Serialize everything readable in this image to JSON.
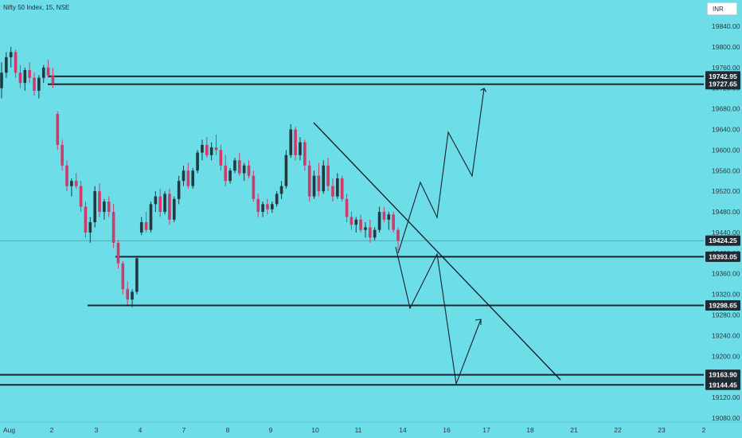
{
  "header": {
    "symbol": "Nifty 50 Index, 15, NSE",
    "currency": "INR"
  },
  "colors": {
    "background": "#6ddde8",
    "up_candle": "#1f3a40",
    "down_candle": "#cf3a6a",
    "level_line": "#1b2730",
    "price_line": "#3a8f98",
    "label_bg": "#1f2a33"
  },
  "chart_data": {
    "type": "candlestick",
    "title": "Nifty 50 Index, 15, NSE",
    "ylim": [
      19080,
      19870
    ],
    "y_ticks": [
      19840,
      19800,
      19760,
      19720,
      19680,
      19640,
      19600,
      19560,
      19520,
      19480,
      19440,
      19400,
      19360,
      19320,
      19280,
      19240,
      19200,
      19160,
      19120,
      19080
    ],
    "x_ticks": [
      "Aug",
      "2",
      "3",
      "4",
      "7",
      "8",
      "9",
      "10",
      "11",
      "14",
      "16",
      "17",
      "18",
      "21",
      "22",
      "23",
      "2"
    ],
    "current_price": 19424.25,
    "levels": [
      19742.95,
      19727.65,
      19393.05,
      19298.65,
      19163.9,
      19144.45
    ],
    "level_labels": [
      "19742.95",
      "19727.65",
      "19393.05",
      "19298.65",
      "19163.90",
      "19144.45"
    ],
    "current_price_label": "19424.25",
    "candles": [
      {
        "o": 19720,
        "h": 19770,
        "l": 19700,
        "c": 19750
      },
      {
        "o": 19750,
        "h": 19790,
        "l": 19740,
        "c": 19780
      },
      {
        "o": 19780,
        "h": 19800,
        "l": 19760,
        "c": 19790
      },
      {
        "o": 19790,
        "h": 19795,
        "l": 19740,
        "c": 19750
      },
      {
        "o": 19750,
        "h": 19765,
        "l": 19720,
        "c": 19730
      },
      {
        "o": 19730,
        "h": 19760,
        "l": 19715,
        "c": 19755
      },
      {
        "o": 19755,
        "h": 19770,
        "l": 19730,
        "c": 19740
      },
      {
        "o": 19740,
        "h": 19750,
        "l": 19705,
        "c": 19715
      },
      {
        "o": 19715,
        "h": 19745,
        "l": 19700,
        "c": 19740
      },
      {
        "o": 19740,
        "h": 19765,
        "l": 19730,
        "c": 19760
      },
      {
        "o": 19760,
        "h": 19775,
        "l": 19740,
        "c": 19745
      },
      {
        "o": 19745,
        "h": 19760,
        "l": 19720,
        "c": 19730
      },
      {
        "o": 19670,
        "h": 19675,
        "l": 19600,
        "c": 19610
      },
      {
        "o": 19610,
        "h": 19620,
        "l": 19560,
        "c": 19570
      },
      {
        "o": 19570,
        "h": 19580,
        "l": 19520,
        "c": 19530
      },
      {
        "o": 19530,
        "h": 19545,
        "l": 19510,
        "c": 19540
      },
      {
        "o": 19540,
        "h": 19555,
        "l": 19525,
        "c": 19530
      },
      {
        "o": 19530,
        "h": 19540,
        "l": 19480,
        "c": 19490
      },
      {
        "o": 19490,
        "h": 19500,
        "l": 19430,
        "c": 19440
      },
      {
        "o": 19440,
        "h": 19470,
        "l": 19420,
        "c": 19460
      },
      {
        "o": 19460,
        "h": 19530,
        "l": 19450,
        "c": 19520
      },
      {
        "o": 19520,
        "h": 19535,
        "l": 19470,
        "c": 19480
      },
      {
        "o": 19480,
        "h": 19505,
        "l": 19465,
        "c": 19500
      },
      {
        "o": 19500,
        "h": 19510,
        "l": 19470,
        "c": 19480
      },
      {
        "o": 19480,
        "h": 19495,
        "l": 19410,
        "c": 19420
      },
      {
        "o": 19420,
        "h": 19425,
        "l": 19370,
        "c": 19380
      },
      {
        "o": 19380,
        "h": 19385,
        "l": 19320,
        "c": 19330
      },
      {
        "o": 19330,
        "h": 19345,
        "l": 19300,
        "c": 19310
      },
      {
        "o": 19310,
        "h": 19330,
        "l": 19295,
        "c": 19325
      },
      {
        "o": 19325,
        "h": 19395,
        "l": 19320,
        "c": 19390
      },
      {
        "o": 19440,
        "h": 19470,
        "l": 19435,
        "c": 19460
      },
      {
        "o": 19460,
        "h": 19480,
        "l": 19440,
        "c": 19445
      },
      {
        "o": 19445,
        "h": 19500,
        "l": 19440,
        "c": 19495
      },
      {
        "o": 19495,
        "h": 19520,
        "l": 19480,
        "c": 19510
      },
      {
        "o": 19510,
        "h": 19525,
        "l": 19470,
        "c": 19480
      },
      {
        "o": 19480,
        "h": 19520,
        "l": 19475,
        "c": 19515
      },
      {
        "o": 19515,
        "h": 19525,
        "l": 19455,
        "c": 19465
      },
      {
        "o": 19465,
        "h": 19510,
        "l": 19460,
        "c": 19505
      },
      {
        "o": 19505,
        "h": 19550,
        "l": 19495,
        "c": 19540
      },
      {
        "o": 19540,
        "h": 19570,
        "l": 19530,
        "c": 19560
      },
      {
        "o": 19560,
        "h": 19575,
        "l": 19525,
        "c": 19530
      },
      {
        "o": 19530,
        "h": 19565,
        "l": 19525,
        "c": 19560
      },
      {
        "o": 19560,
        "h": 19600,
        "l": 19555,
        "c": 19595
      },
      {
        "o": 19595,
        "h": 19620,
        "l": 19580,
        "c": 19610
      },
      {
        "o": 19610,
        "h": 19625,
        "l": 19585,
        "c": 19590
      },
      {
        "o": 19590,
        "h": 19615,
        "l": 19580,
        "c": 19605
      },
      {
        "o": 19605,
        "h": 19630,
        "l": 19590,
        "c": 19600
      },
      {
        "o": 19600,
        "h": 19610,
        "l": 19560,
        "c": 19570
      },
      {
        "o": 19570,
        "h": 19590,
        "l": 19530,
        "c": 19540
      },
      {
        "o": 19540,
        "h": 19565,
        "l": 19535,
        "c": 19560
      },
      {
        "o": 19560,
        "h": 19585,
        "l": 19555,
        "c": 19580
      },
      {
        "o": 19580,
        "h": 19595,
        "l": 19550,
        "c": 19555
      },
      {
        "o": 19555,
        "h": 19575,
        "l": 19540,
        "c": 19570
      },
      {
        "o": 19570,
        "h": 19580,
        "l": 19545,
        "c": 19550
      },
      {
        "o": 19550,
        "h": 19560,
        "l": 19500,
        "c": 19505
      },
      {
        "o": 19505,
        "h": 19515,
        "l": 19470,
        "c": 19480
      },
      {
        "o": 19480,
        "h": 19500,
        "l": 19470,
        "c": 19495
      },
      {
        "o": 19495,
        "h": 19505,
        "l": 19475,
        "c": 19485
      },
      {
        "o": 19485,
        "h": 19500,
        "l": 19478,
        "c": 19495
      },
      {
        "o": 19495,
        "h": 19520,
        "l": 19490,
        "c": 19515
      },
      {
        "o": 19515,
        "h": 19540,
        "l": 19505,
        "c": 19530
      },
      {
        "o": 19530,
        "h": 19600,
        "l": 19525,
        "c": 19590
      },
      {
        "o": 19590,
        "h": 19650,
        "l": 19585,
        "c": 19640
      },
      {
        "o": 19640,
        "h": 19645,
        "l": 19580,
        "c": 19590
      },
      {
        "o": 19590,
        "h": 19625,
        "l": 19580,
        "c": 19615
      },
      {
        "o": 19615,
        "h": 19620,
        "l": 19560,
        "c": 19570
      },
      {
        "o": 19570,
        "h": 19580,
        "l": 19500,
        "c": 19510
      },
      {
        "o": 19510,
        "h": 19560,
        "l": 19505,
        "c": 19550
      },
      {
        "o": 19550,
        "h": 19575,
        "l": 19510,
        "c": 19520
      },
      {
        "o": 19520,
        "h": 19580,
        "l": 19515,
        "c": 19570
      },
      {
        "o": 19570,
        "h": 19585,
        "l": 19520,
        "c": 19530
      },
      {
        "o": 19530,
        "h": 19545,
        "l": 19500,
        "c": 19510
      },
      {
        "o": 19510,
        "h": 19555,
        "l": 19505,
        "c": 19545
      },
      {
        "o": 19545,
        "h": 19550,
        "l": 19500,
        "c": 19505
      },
      {
        "o": 19505,
        "h": 19515,
        "l": 19460,
        "c": 19470
      },
      {
        "o": 19470,
        "h": 19480,
        "l": 19445,
        "c": 19455
      },
      {
        "o": 19455,
        "h": 19470,
        "l": 19440,
        "c": 19465
      },
      {
        "o": 19465,
        "h": 19475,
        "l": 19440,
        "c": 19445
      },
      {
        "o": 19445,
        "h": 19460,
        "l": 19430,
        "c": 19450
      },
      {
        "o": 19450,
        "h": 19465,
        "l": 19420,
        "c": 19430
      },
      {
        "o": 19430,
        "h": 19450,
        "l": 19425,
        "c": 19445
      },
      {
        "o": 19445,
        "h": 19490,
        "l": 19440,
        "c": 19480
      },
      {
        "o": 19480,
        "h": 19490,
        "l": 19460,
        "c": 19465
      },
      {
        "o": 19465,
        "h": 19480,
        "l": 19445,
        "c": 19475
      },
      {
        "o": 19475,
        "h": 19480,
        "l": 19440,
        "c": 19445
      },
      {
        "o": 19445,
        "h": 19450,
        "l": 19405,
        "c": 19424
      }
    ]
  }
}
